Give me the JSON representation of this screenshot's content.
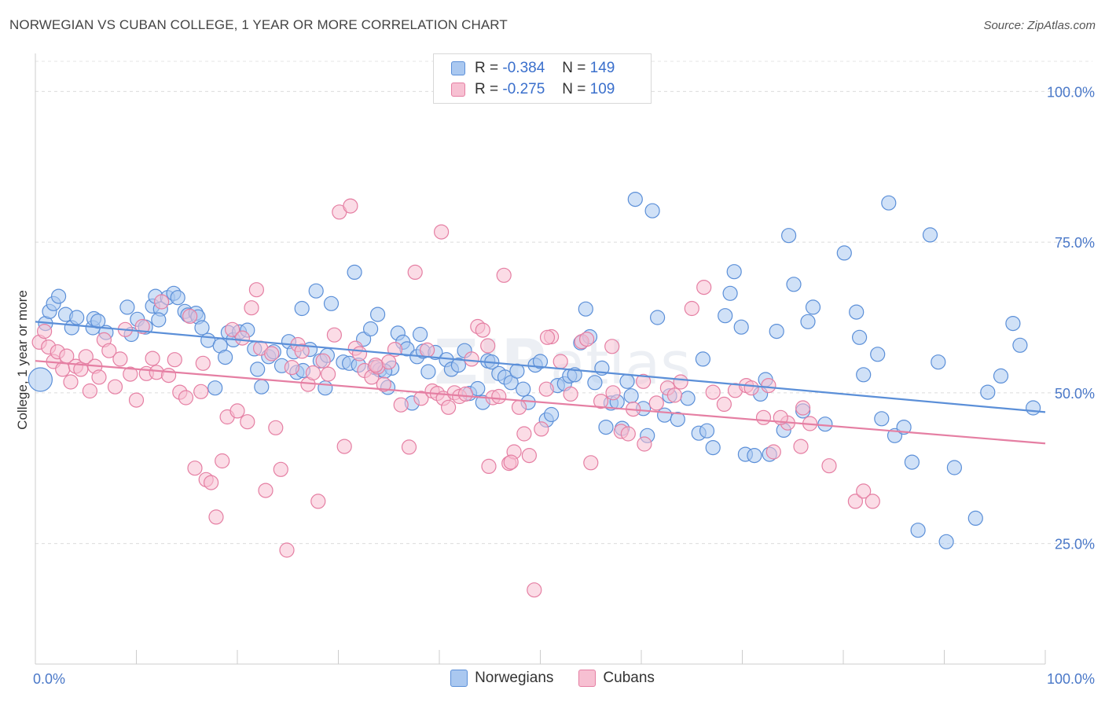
{
  "header": {
    "title": "NORWEGIAN VS CUBAN COLLEGE, 1 YEAR OR MORE CORRELATION CHART",
    "source": "Source: ZipAtlas.com"
  },
  "legend": {
    "r_label": "R =",
    "n_label": "N =",
    "rows": [
      {
        "r": "-0.384",
        "n": "149",
        "fill": "#aac8f0",
        "stroke": "#5b8fd8"
      },
      {
        "r": "-0.275",
        "n": "109",
        "fill": "#f7c0d2",
        "stroke": "#e57fa3"
      }
    ]
  },
  "bottom_legend": [
    {
      "label": "Norwegians",
      "fill": "#aac8f0",
      "stroke": "#5b8fd8"
    },
    {
      "label": "Cubans",
      "fill": "#f7c0d2",
      "stroke": "#e57fa3"
    }
  ],
  "chart_data": {
    "type": "scatter",
    "title": "NORWEGIAN VS CUBAN COLLEGE, 1 YEAR OR MORE CORRELATION CHART",
    "ylabel": "College, 1 year or more",
    "xlabel": "",
    "xlim": [
      0,
      100
    ],
    "ylim": [
      5,
      105
    ],
    "x_tick_labels": [
      {
        "value": 0,
        "label": "0.0%"
      },
      {
        "value": 100,
        "label": "100.0%"
      }
    ],
    "y_tick_labels": [
      {
        "value": 100,
        "label": "100.0%"
      },
      {
        "value": 75,
        "label": "75.0%"
      },
      {
        "value": 50,
        "label": "50.0%"
      },
      {
        "value": 25,
        "label": "25.0%"
      }
    ],
    "grid": "horizontal dashed",
    "watermark": "ZIPatlas",
    "series": [
      {
        "name": "Norwegians",
        "color": "#5b8fd8",
        "fill": "#aac8f0",
        "trend": {
          "x": [
            0,
            100
          ],
          "y": [
            61.8,
            46.8
          ]
        },
        "points": [
          [
            0.5,
            52.2
          ],
          [
            1.0,
            61.5
          ],
          [
            1.4,
            63.5
          ],
          [
            1.8,
            64.8
          ],
          [
            2.3,
            66.0
          ],
          [
            3.0,
            63.0
          ],
          [
            3.6,
            60.8
          ],
          [
            4.1,
            62.5
          ],
          [
            5.7,
            60.8
          ],
          [
            5.8,
            62.3
          ],
          [
            6.2,
            61.9
          ],
          [
            7.0,
            60.0
          ],
          [
            9.1,
            64.2
          ],
          [
            9.5,
            59.7
          ],
          [
            10.1,
            62.2
          ],
          [
            10.9,
            60.9
          ],
          [
            11.6,
            64.4
          ],
          [
            11.9,
            66.0
          ],
          [
            12.4,
            63.9
          ],
          [
            13.1,
            65.8
          ],
          [
            13.7,
            66.5
          ],
          [
            14.1,
            65.8
          ],
          [
            14.8,
            63.5
          ],
          [
            15.1,
            62.9
          ],
          [
            15.9,
            63.2
          ],
          [
            16.1,
            62.6
          ],
          [
            16.5,
            60.8
          ],
          [
            17.1,
            58.7
          ],
          [
            17.8,
            50.8
          ],
          [
            18.3,
            57.8
          ],
          [
            18.8,
            55.9
          ],
          [
            19.1,
            60.0
          ],
          [
            19.6,
            58.8
          ],
          [
            20.2,
            60.1
          ],
          [
            21.0,
            60.4
          ],
          [
            21.7,
            57.3
          ],
          [
            22.0,
            53.9
          ],
          [
            22.4,
            51.0
          ],
          [
            23.1,
            56.0
          ],
          [
            23.6,
            56.8
          ],
          [
            24.4,
            54.5
          ],
          [
            25.1,
            58.5
          ],
          [
            25.6,
            56.8
          ],
          [
            25.9,
            53.4
          ],
          [
            26.5,
            53.7
          ],
          [
            27.2,
            57.2
          ],
          [
            27.8,
            66.9
          ],
          [
            28.2,
            55.3
          ],
          [
            28.9,
            56.2
          ],
          [
            29.3,
            64.8
          ],
          [
            30.5,
            55.1
          ],
          [
            31.1,
            54.9
          ],
          [
            31.6,
            70.0
          ],
          [
            32.0,
            54.6
          ],
          [
            32.5,
            58.9
          ],
          [
            33.2,
            60.6
          ],
          [
            33.6,
            54.2
          ],
          [
            34.1,
            53.8
          ],
          [
            34.9,
            50.9
          ],
          [
            35.3,
            54.1
          ],
          [
            35.9,
            59.9
          ],
          [
            36.4,
            58.4
          ],
          [
            36.8,
            57.3
          ],
          [
            37.3,
            48.3
          ],
          [
            37.8,
            56.0
          ],
          [
            38.4,
            56.9
          ],
          [
            38.9,
            53.5
          ],
          [
            39.6,
            56.7
          ],
          [
            40.7,
            55.5
          ],
          [
            41.2,
            53.9
          ],
          [
            41.9,
            54.6
          ],
          [
            42.5,
            57.0
          ],
          [
            43.0,
            49.9
          ],
          [
            43.8,
            50.7
          ],
          [
            44.3,
            48.4
          ],
          [
            44.8,
            55.3
          ],
          [
            45.2,
            55.1
          ],
          [
            45.9,
            53.2
          ],
          [
            46.5,
            52.6
          ],
          [
            47.1,
            51.7
          ],
          [
            47.7,
            53.6
          ],
          [
            48.3,
            50.6
          ],
          [
            48.8,
            48.4
          ],
          [
            49.5,
            54.6
          ],
          [
            50.0,
            55.2
          ],
          [
            50.6,
            45.5
          ],
          [
            51.1,
            46.4
          ],
          [
            51.7,
            51.2
          ],
          [
            52.4,
            51.5
          ],
          [
            52.9,
            52.8
          ],
          [
            53.4,
            53.0
          ],
          [
            54.0,
            58.3
          ],
          [
            54.5,
            63.9
          ],
          [
            54.9,
            59.3
          ],
          [
            55.4,
            51.7
          ],
          [
            56.1,
            54.1
          ],
          [
            56.5,
            44.3
          ],
          [
            57.0,
            48.3
          ],
          [
            57.6,
            48.5
          ],
          [
            58.1,
            44.1
          ],
          [
            58.6,
            51.9
          ],
          [
            59.0,
            49.5
          ],
          [
            59.4,
            82.1
          ],
          [
            60.2,
            47.4
          ],
          [
            60.6,
            42.9
          ],
          [
            61.1,
            80.2
          ],
          [
            61.6,
            62.5
          ],
          [
            62.3,
            46.3
          ],
          [
            62.8,
            49.5
          ],
          [
            63.6,
            45.6
          ],
          [
            64.6,
            49.1
          ],
          [
            65.7,
            43.3
          ],
          [
            66.1,
            55.6
          ],
          [
            66.5,
            43.7
          ],
          [
            67.1,
            40.9
          ],
          [
            68.3,
            62.8
          ],
          [
            68.8,
            66.5
          ],
          [
            69.2,
            70.1
          ],
          [
            69.9,
            60.9
          ],
          [
            70.3,
            39.8
          ],
          [
            71.2,
            39.6
          ],
          [
            71.8,
            49.8
          ],
          [
            72.3,
            52.2
          ],
          [
            72.7,
            39.8
          ],
          [
            73.4,
            60.2
          ],
          [
            74.1,
            43.8
          ],
          [
            74.6,
            76.1
          ],
          [
            75.1,
            68.0
          ],
          [
            76.0,
            47.0
          ],
          [
            76.5,
            61.8
          ],
          [
            77.0,
            64.2
          ],
          [
            78.2,
            44.8
          ],
          [
            80.1,
            73.2
          ],
          [
            81.3,
            63.4
          ],
          [
            81.6,
            59.2
          ],
          [
            82.0,
            53.0
          ],
          [
            83.4,
            56.4
          ],
          [
            83.8,
            45.7
          ],
          [
            84.5,
            81.5
          ],
          [
            85.1,
            42.9
          ],
          [
            86.0,
            44.3
          ],
          [
            86.8,
            38.5
          ],
          [
            87.4,
            27.2
          ],
          [
            88.6,
            76.2
          ],
          [
            89.4,
            55.1
          ],
          [
            90.2,
            25.3
          ],
          [
            91.0,
            37.6
          ],
          [
            93.1,
            29.2
          ],
          [
            94.3,
            50.1
          ],
          [
            95.6,
            52.8
          ],
          [
            96.8,
            61.5
          ],
          [
            97.5,
            57.9
          ],
          [
            98.8,
            47.5
          ],
          [
            12.2,
            62.1
          ],
          [
            26.4,
            64.0
          ],
          [
            28.7,
            50.8
          ],
          [
            33.9,
            63.0
          ],
          [
            34.6,
            53.6
          ],
          [
            38.1,
            59.7
          ]
        ]
      },
      {
        "name": "Cubans",
        "color": "#e57fa3",
        "fill": "#f7c0d2",
        "trend": {
          "x": [
            0,
            100
          ],
          "y": [
            55.3,
            41.6
          ]
        },
        "points": [
          [
            0.4,
            58.4
          ],
          [
            0.9,
            60.2
          ],
          [
            1.3,
            57.6
          ],
          [
            1.8,
            55.2
          ],
          [
            2.2,
            56.8
          ],
          [
            2.7,
            53.9
          ],
          [
            3.1,
            56.1
          ],
          [
            3.5,
            51.8
          ],
          [
            4.0,
            54.4
          ],
          [
            4.5,
            53.9
          ],
          [
            5.0,
            56.0
          ],
          [
            5.4,
            50.3
          ],
          [
            5.9,
            54.4
          ],
          [
            6.3,
            52.6
          ],
          [
            6.8,
            58.8
          ],
          [
            7.3,
            57.0
          ],
          [
            7.9,
            51.0
          ],
          [
            8.4,
            55.6
          ],
          [
            8.9,
            60.5
          ],
          [
            9.4,
            53.1
          ],
          [
            10.0,
            48.8
          ],
          [
            10.6,
            61.0
          ],
          [
            11.0,
            53.2
          ],
          [
            11.6,
            55.7
          ],
          [
            12.0,
            53.4
          ],
          [
            12.5,
            65.1
          ],
          [
            13.2,
            52.9
          ],
          [
            13.8,
            55.5
          ],
          [
            14.3,
            50.1
          ],
          [
            14.9,
            49.2
          ],
          [
            15.3,
            62.7
          ],
          [
            15.8,
            37.5
          ],
          [
            16.4,
            50.2
          ],
          [
            16.9,
            35.6
          ],
          [
            17.4,
            35.1
          ],
          [
            17.9,
            29.4
          ],
          [
            18.5,
            38.7
          ],
          [
            19.0,
            46.0
          ],
          [
            19.5,
            60.5
          ],
          [
            20.0,
            47.0
          ],
          [
            20.5,
            59.1
          ],
          [
            21.0,
            45.2
          ],
          [
            21.4,
            64.1
          ],
          [
            21.9,
            67.1
          ],
          [
            22.3,
            57.4
          ],
          [
            22.8,
            33.8
          ],
          [
            23.4,
            56.5
          ],
          [
            23.8,
            44.2
          ],
          [
            24.3,
            37.3
          ],
          [
            24.9,
            23.9
          ],
          [
            25.4,
            54.2
          ],
          [
            26.0,
            58.0
          ],
          [
            26.4,
            56.9
          ],
          [
            27.0,
            51.4
          ],
          [
            27.5,
            53.3
          ],
          [
            28.0,
            32.0
          ],
          [
            28.5,
            55.3
          ],
          [
            29.0,
            53.1
          ],
          [
            29.6,
            59.6
          ],
          [
            30.1,
            80.0
          ],
          [
            30.6,
            41.1
          ],
          [
            31.2,
            81.0
          ],
          [
            31.7,
            57.4
          ],
          [
            32.1,
            56.5
          ],
          [
            32.6,
            53.7
          ],
          [
            33.3,
            52.6
          ],
          [
            33.9,
            54.3
          ],
          [
            34.5,
            51.4
          ],
          [
            35.0,
            55.1
          ],
          [
            35.6,
            57.2
          ],
          [
            36.2,
            48.0
          ],
          [
            37.0,
            41.0
          ],
          [
            37.6,
            70.0
          ],
          [
            38.2,
            49.1
          ],
          [
            38.8,
            57.1
          ],
          [
            39.3,
            50.3
          ],
          [
            39.8,
            49.9
          ],
          [
            40.4,
            49.1
          ],
          [
            40.9,
            47.6
          ],
          [
            41.5,
            50.0
          ],
          [
            42.0,
            49.4
          ],
          [
            42.6,
            49.8
          ],
          [
            43.2,
            55.6
          ],
          [
            43.8,
            61.0
          ],
          [
            44.3,
            60.4
          ],
          [
            44.8,
            57.8
          ],
          [
            45.3,
            49.2
          ],
          [
            45.9,
            49.4
          ],
          [
            46.4,
            69.5
          ],
          [
            46.9,
            38.3
          ],
          [
            47.4,
            40.2
          ],
          [
            47.9,
            47.6
          ],
          [
            48.4,
            43.2
          ],
          [
            48.9,
            39.6
          ],
          [
            49.4,
            17.3
          ],
          [
            50.1,
            44.0
          ],
          [
            50.6,
            50.6
          ],
          [
            51.1,
            59.3
          ],
          [
            52.0,
            55.2
          ],
          [
            53.0,
            49.8
          ],
          [
            54.1,
            58.5
          ],
          [
            55.0,
            38.4
          ],
          [
            56.0,
            48.6
          ],
          [
            57.1,
            57.7
          ],
          [
            58.0,
            43.6
          ],
          [
            59.2,
            47.3
          ],
          [
            60.3,
            41.5
          ],
          [
            61.5,
            48.3
          ],
          [
            62.6,
            50.8
          ],
          [
            63.9,
            51.8
          ],
          [
            65.0,
            64.0
          ],
          [
            66.2,
            67.5
          ],
          [
            67.1,
            50.1
          ],
          [
            68.2,
            48.1
          ],
          [
            69.3,
            50.4
          ],
          [
            70.4,
            51.2
          ],
          [
            72.1,
            45.9
          ],
          [
            73.1,
            40.2
          ],
          [
            74.5,
            45.0
          ],
          [
            75.8,
            41.1
          ],
          [
            76.7,
            44.9
          ],
          [
            78.6,
            37.9
          ],
          [
            81.2,
            32.0
          ],
          [
            82.0,
            33.7
          ],
          [
            82.9,
            32.0
          ],
          [
            60.2,
            51.9
          ],
          [
            63.3,
            49.6
          ],
          [
            70.9,
            50.8
          ],
          [
            72.6,
            51.2
          ],
          [
            50.7,
            59.2
          ],
          [
            54.6,
            58.9
          ],
          [
            33.7,
            54.6
          ],
          [
            44.9,
            37.8
          ],
          [
            47.1,
            38.5
          ],
          [
            40.2,
            76.7
          ],
          [
            76.0,
            47.5
          ],
          [
            73.8,
            45.9
          ],
          [
            57.2,
            50.0
          ],
          [
            58.7,
            43.2
          ],
          [
            16.6,
            54.9
          ]
        ]
      }
    ]
  }
}
